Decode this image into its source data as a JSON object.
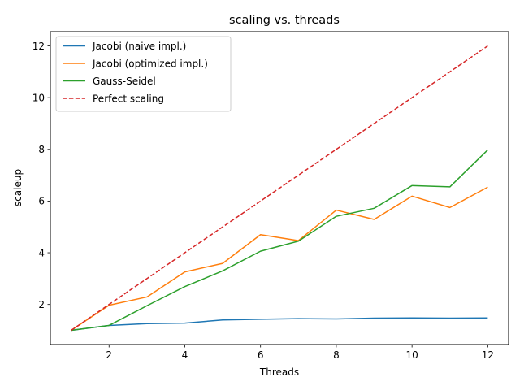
{
  "chart_data": {
    "type": "line",
    "title": "scaling vs. threads",
    "xlabel": "Threads",
    "ylabel": "scaleup",
    "xlim": [
      0.45,
      12.55
    ],
    "ylim": [
      0.45,
      12.55
    ],
    "xticks": [
      2,
      4,
      6,
      8,
      10,
      12
    ],
    "yticks": [
      2,
      4,
      6,
      8,
      10,
      12
    ],
    "grid": false,
    "legend_position": "upper-left",
    "x": [
      1,
      2,
      3,
      4,
      5,
      6,
      7,
      8,
      9,
      10,
      11,
      12
    ],
    "series": [
      {
        "name": "Jacobi (naive impl.)",
        "color": "#1f77b4",
        "dash": "solid",
        "values": [
          1.0,
          1.19,
          1.26,
          1.28,
          1.4,
          1.43,
          1.45,
          1.44,
          1.47,
          1.48,
          1.47,
          1.48
        ]
      },
      {
        "name": "Jacobi (optimized impl.)",
        "color": "#ff7f0e",
        "dash": "solid",
        "values": [
          1.0,
          1.97,
          2.29,
          3.26,
          3.59,
          4.7,
          4.47,
          5.65,
          5.29,
          6.19,
          5.75,
          6.54
        ]
      },
      {
        "name": "Gauss-Seidel",
        "color": "#2ca02c",
        "dash": "solid",
        "values": [
          1.0,
          1.19,
          1.95,
          2.69,
          3.3,
          4.06,
          4.45,
          5.41,
          5.72,
          6.6,
          6.55,
          7.98
        ]
      },
      {
        "name": "Perfect scaling",
        "color": "#d62728",
        "dash": "dashed",
        "values": [
          1,
          2,
          3,
          4,
          5,
          6,
          7,
          8,
          9,
          10,
          11,
          12
        ]
      }
    ]
  }
}
